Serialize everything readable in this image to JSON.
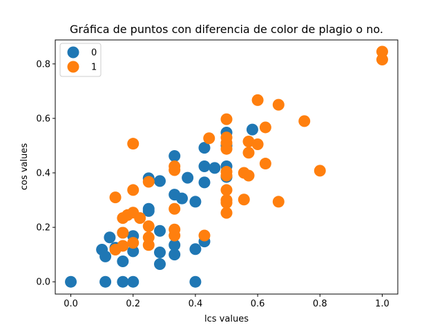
{
  "chart_data": {
    "type": "scatter",
    "title": "Gráfica de puntos con diferencia de color de plagio o no.",
    "xlabel": "lcs values",
    "ylabel": "cos values",
    "xlim": [
      -0.05,
      1.05
    ],
    "ylim": [
      -0.045,
      0.888
    ],
    "xticks": [
      0.0,
      0.2,
      0.4,
      0.6,
      0.8,
      1.0
    ],
    "xtick_labels": [
      "0.0",
      "0.2",
      "0.4",
      "0.6",
      "0.8",
      "1.0"
    ],
    "yticks": [
      0.0,
      0.2,
      0.4,
      0.6,
      0.8
    ],
    "ytick_labels": [
      "0.0",
      "0.2",
      "0.4",
      "0.6",
      "0.8"
    ],
    "grid": false,
    "legend_position": "top-left",
    "series": [
      {
        "name": "0",
        "color": "#1f77b4",
        "points": [
          [
            0.0,
            0.0
          ],
          [
            0.111,
            0.0
          ],
          [
            0.167,
            0.0
          ],
          [
            0.2,
            0.0
          ],
          [
            0.4,
            0.0
          ],
          [
            0.1,
            0.118
          ],
          [
            0.111,
            0.093
          ],
          [
            0.125,
            0.163
          ],
          [
            0.143,
            0.125
          ],
          [
            0.167,
            0.075
          ],
          [
            0.2,
            0.112
          ],
          [
            0.2,
            0.168
          ],
          [
            0.167,
            0.18
          ],
          [
            0.25,
            0.26
          ],
          [
            0.25,
            0.268
          ],
          [
            0.25,
            0.38
          ],
          [
            0.286,
            0.065
          ],
          [
            0.286,
            0.108
          ],
          [
            0.286,
            0.187
          ],
          [
            0.286,
            0.37
          ],
          [
            0.333,
            0.1
          ],
          [
            0.333,
            0.135
          ],
          [
            0.333,
            0.32
          ],
          [
            0.333,
            0.462
          ],
          [
            0.357,
            0.306
          ],
          [
            0.375,
            0.382
          ],
          [
            0.4,
            0.12
          ],
          [
            0.4,
            0.294
          ],
          [
            0.429,
            0.148
          ],
          [
            0.429,
            0.365
          ],
          [
            0.429,
            0.424
          ],
          [
            0.429,
            0.492
          ],
          [
            0.462,
            0.418
          ],
          [
            0.5,
            0.385
          ],
          [
            0.5,
            0.424
          ],
          [
            0.5,
            0.5
          ],
          [
            0.5,
            0.548
          ],
          [
            0.583,
            0.559
          ]
        ]
      },
      {
        "name": "1",
        "color": "#ff7f0e",
        "points": [
          [
            0.143,
            0.31
          ],
          [
            0.143,
            0.118
          ],
          [
            0.167,
            0.132
          ],
          [
            0.167,
            0.18
          ],
          [
            0.167,
            0.234
          ],
          [
            0.182,
            0.245
          ],
          [
            0.2,
            0.143
          ],
          [
            0.2,
            0.254
          ],
          [
            0.2,
            0.337
          ],
          [
            0.2,
            0.507
          ],
          [
            0.222,
            0.234
          ],
          [
            0.25,
            0.135
          ],
          [
            0.25,
            0.163
          ],
          [
            0.25,
            0.204
          ],
          [
            0.25,
            0.367
          ],
          [
            0.333,
            0.17
          ],
          [
            0.333,
            0.192
          ],
          [
            0.333,
            0.268
          ],
          [
            0.333,
            0.41
          ],
          [
            0.333,
            0.424
          ],
          [
            0.429,
            0.17
          ],
          [
            0.444,
            0.527
          ],
          [
            0.5,
            0.253
          ],
          [
            0.5,
            0.29
          ],
          [
            0.5,
            0.3
          ],
          [
            0.5,
            0.337
          ],
          [
            0.5,
            0.39
          ],
          [
            0.5,
            0.404
          ],
          [
            0.5,
            0.488
          ],
          [
            0.5,
            0.51
          ],
          [
            0.5,
            0.53
          ],
          [
            0.5,
            0.597
          ],
          [
            0.556,
            0.302
          ],
          [
            0.556,
            0.4
          ],
          [
            0.571,
            0.39
          ],
          [
            0.571,
            0.474
          ],
          [
            0.571,
            0.515
          ],
          [
            0.6,
            0.505
          ],
          [
            0.6,
            0.667
          ],
          [
            0.625,
            0.434
          ],
          [
            0.625,
            0.567
          ],
          [
            0.667,
            0.294
          ],
          [
            0.667,
            0.65
          ],
          [
            0.75,
            0.59
          ],
          [
            0.8,
            0.408
          ],
          [
            1.0,
            0.816
          ],
          [
            1.0,
            0.845
          ]
        ]
      }
    ]
  }
}
